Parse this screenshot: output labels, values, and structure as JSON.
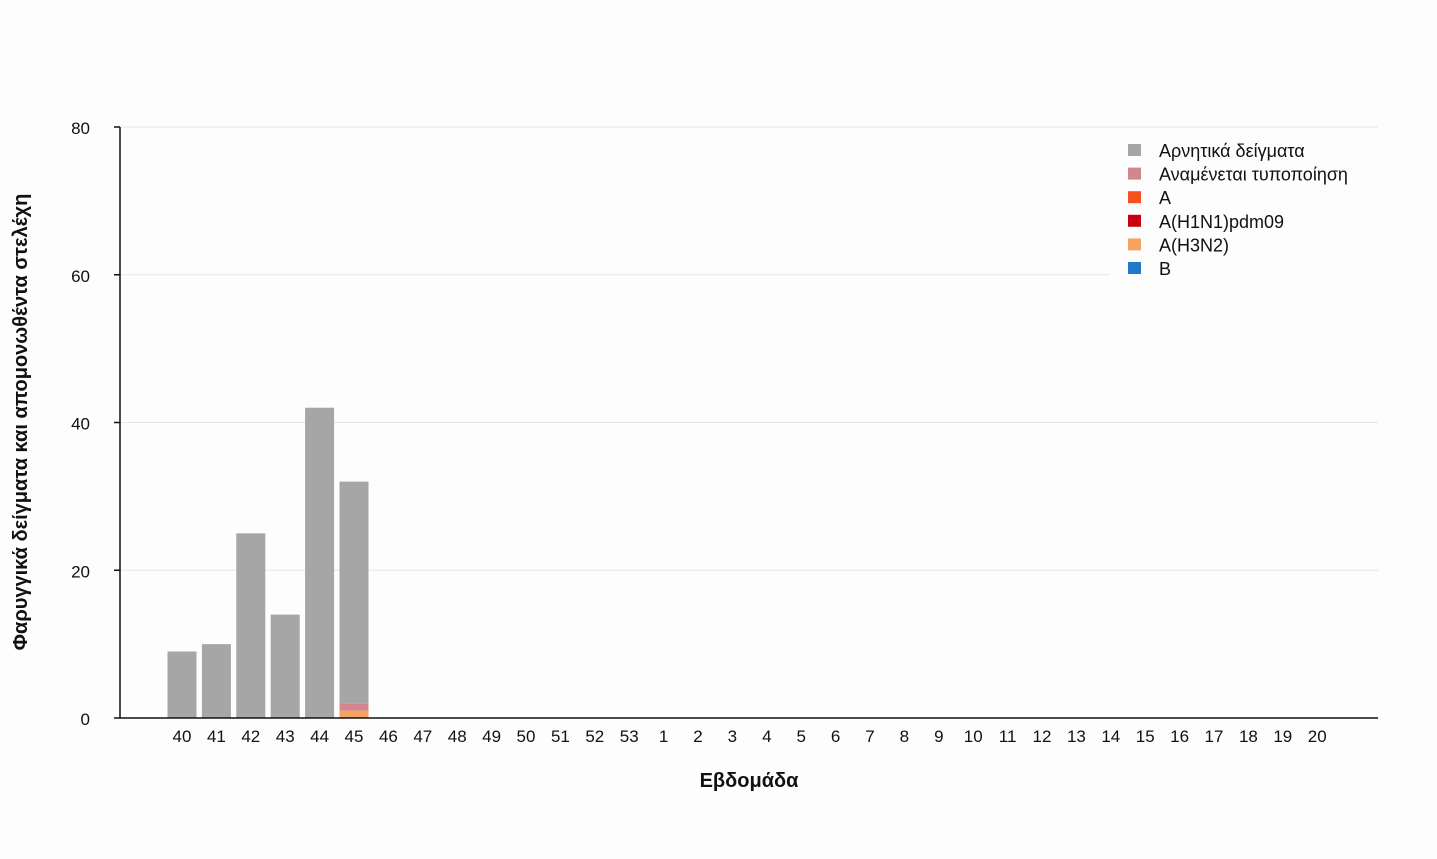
{
  "chart_data": {
    "type": "bar",
    "stacked": true,
    "xlabel": "Εβδομάδα",
    "ylabel": "Φαρυγγικά δείγματα και απομονωθέντα στελέχη",
    "ylim": [
      0,
      80
    ],
    "yticks": [
      0,
      20,
      40,
      60,
      80
    ],
    "grid": true,
    "legend_position": "top-right",
    "categories": [
      "40",
      "41",
      "42",
      "43",
      "44",
      "45",
      "46",
      "47",
      "48",
      "49",
      "50",
      "51",
      "52",
      "53",
      "1",
      "2",
      "3",
      "4",
      "5",
      "6",
      "7",
      "8",
      "9",
      "10",
      "11",
      "12",
      "13",
      "14",
      "15",
      "16",
      "17",
      "18",
      "19",
      "20"
    ],
    "series": [
      {
        "name": "Αρνητικά δείγματα",
        "color": "#a6a6a6",
        "values": [
          9,
          10,
          25,
          14,
          42,
          30,
          0,
          0,
          0,
          0,
          0,
          0,
          0,
          0,
          0,
          0,
          0,
          0,
          0,
          0,
          0,
          0,
          0,
          0,
          0,
          0,
          0,
          0,
          0,
          0,
          0,
          0,
          0,
          0
        ]
      },
      {
        "name": "Αναμένεται τυποποίηση",
        "color": "#d4868f",
        "values": [
          0,
          0,
          0,
          0,
          0,
          1,
          0,
          0,
          0,
          0,
          0,
          0,
          0,
          0,
          0,
          0,
          0,
          0,
          0,
          0,
          0,
          0,
          0,
          0,
          0,
          0,
          0,
          0,
          0,
          0,
          0,
          0,
          0,
          0
        ]
      },
      {
        "name": "A",
        "color": "#f4511e",
        "values": [
          0,
          0,
          0,
          0,
          0,
          0,
          0,
          0,
          0,
          0,
          0,
          0,
          0,
          0,
          0,
          0,
          0,
          0,
          0,
          0,
          0,
          0,
          0,
          0,
          0,
          0,
          0,
          0,
          0,
          0,
          0,
          0,
          0,
          0
        ]
      },
      {
        "name": "A(H1N1)pdm09",
        "color": "#c8000e",
        "values": [
          0,
          0,
          0,
          0,
          0,
          0,
          0,
          0,
          0,
          0,
          0,
          0,
          0,
          0,
          0,
          0,
          0,
          0,
          0,
          0,
          0,
          0,
          0,
          0,
          0,
          0,
          0,
          0,
          0,
          0,
          0,
          0,
          0,
          0
        ]
      },
      {
        "name": "A(H3N2)",
        "color": "#f4a460",
        "values": [
          0,
          0,
          0,
          0,
          0,
          1,
          0,
          0,
          0,
          0,
          0,
          0,
          0,
          0,
          0,
          0,
          0,
          0,
          0,
          0,
          0,
          0,
          0,
          0,
          0,
          0,
          0,
          0,
          0,
          0,
          0,
          0,
          0,
          0
        ]
      },
      {
        "name": "B",
        "color": "#1f78c8",
        "values": [
          0,
          0,
          0,
          0,
          0,
          0,
          0,
          0,
          0,
          0,
          0,
          0,
          0,
          0,
          0,
          0,
          0,
          0,
          0,
          0,
          0,
          0,
          0,
          0,
          0,
          0,
          0,
          0,
          0,
          0,
          0,
          0,
          0,
          0
        ]
      }
    ]
  }
}
